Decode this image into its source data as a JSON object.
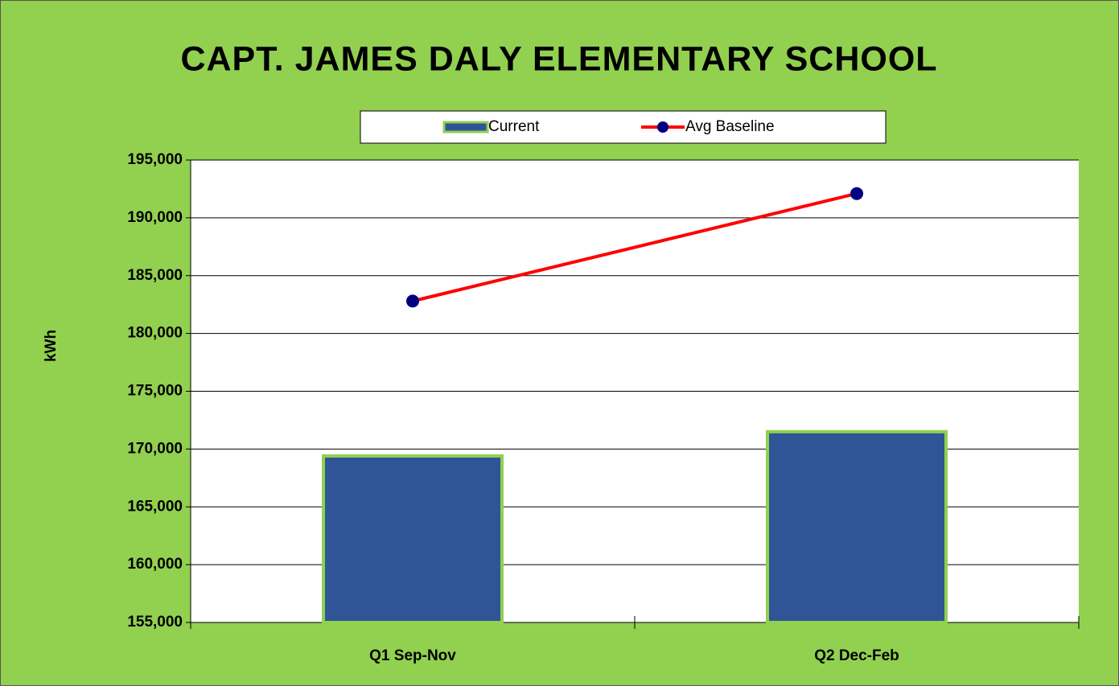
{
  "chart_data": {
    "type": "bar",
    "title": "CAPT. JAMES DALY ELEMENTARY SCHOOL",
    "y_label": "kWh",
    "categories": [
      "Q1 Sep-Nov",
      "Q2 Dec-Feb"
    ],
    "series": [
      {
        "name": "Current",
        "type": "bar",
        "color": "#2f5597",
        "values": [
          169400,
          171500
        ]
      },
      {
        "name": "Avg Baseline",
        "type": "line",
        "color": "#ff0000",
        "marker_color": "#000080",
        "values": [
          182800,
          192100
        ]
      }
    ],
    "ylim": [
      155000,
      195000
    ],
    "yticks": [
      {
        "value": 155000,
        "label": "155,000"
      },
      {
        "value": 160000,
        "label": "160,000"
      },
      {
        "value": 165000,
        "label": "165,000"
      },
      {
        "value": 170000,
        "label": "170,000"
      },
      {
        "value": 175000,
        "label": "175,000"
      },
      {
        "value": 180000,
        "label": "180,000"
      },
      {
        "value": 185000,
        "label": "185,000"
      },
      {
        "value": 190000,
        "label": "190,000"
      },
      {
        "value": 195000,
        "label": "195,000"
      }
    ],
    "grid": true,
    "legend": "top"
  }
}
